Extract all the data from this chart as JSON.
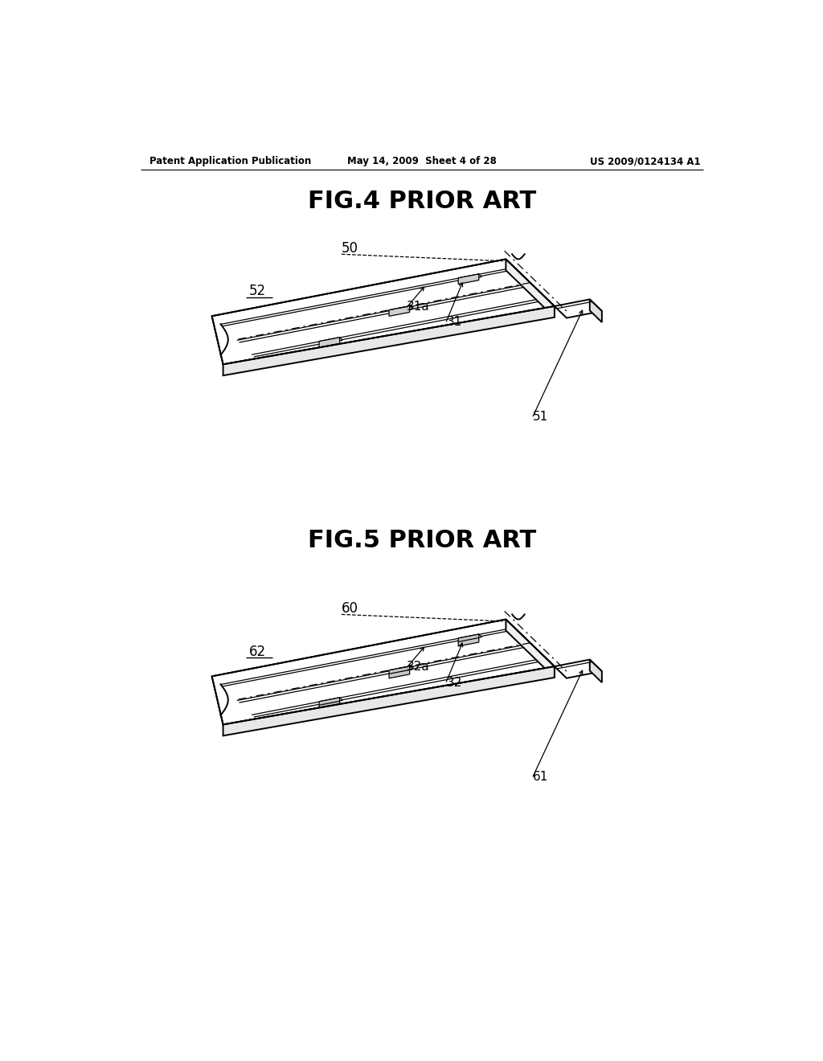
{
  "bg_color": "#ffffff",
  "header_left": "Patent Application Publication",
  "header_mid": "May 14, 2009  Sheet 4 of 28",
  "header_right": "US 2009/0124134 A1",
  "fig4_title": "FIG.4 PRIOR ART",
  "fig5_title": "FIG.5 PRIOR ART",
  "line_color": "#000000",
  "lw_thin": 0.9,
  "lw_med": 1.4,
  "lw_thick": 2.0
}
